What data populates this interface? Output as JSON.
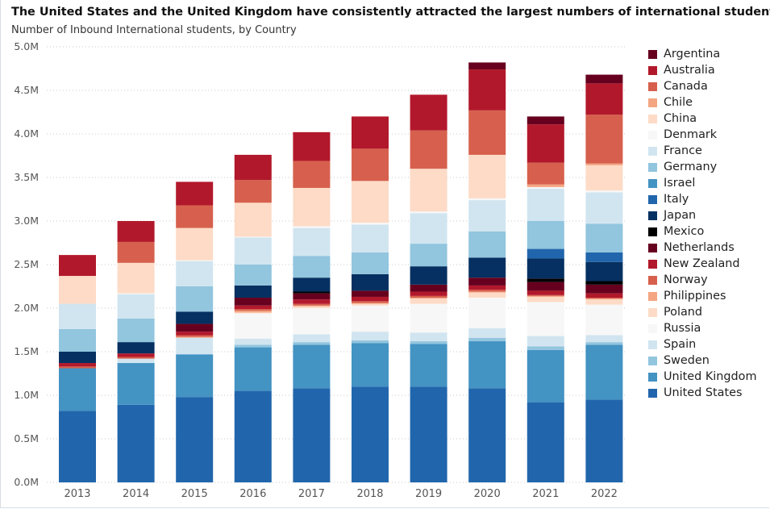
{
  "title": "The United States and the United Kingdom have consistently attracted the largest numbers of international students.",
  "subtitle": "Number of Inbound International students, by Country",
  "chart_data": {
    "type": "bar",
    "stacked": true,
    "categories": [
      "2013",
      "2014",
      "2015",
      "2016",
      "2017",
      "2018",
      "2019",
      "2020",
      "2021",
      "2022"
    ],
    "ylim": [
      0,
      5000000
    ],
    "yticks": [
      0,
      500000,
      1000000,
      1500000,
      2000000,
      2500000,
      3000000,
      3500000,
      4000000,
      4500000,
      5000000
    ],
    "ytick_labels": [
      "0.0M",
      "0.5M",
      "1.0M",
      "1.5M",
      "2.0M",
      "2.5M",
      "3.0M",
      "3.5M",
      "4.0M",
      "4.5M",
      "5.0M"
    ],
    "grid": true,
    "legend_position": "right",
    "series": [
      {
        "name": "United States",
        "color": "#2166ac",
        "values": [
          820000,
          890000,
          980000,
          1050000,
          1080000,
          1100000,
          1100000,
          1080000,
          920000,
          950000
        ]
      },
      {
        "name": "United Kingdom",
        "color": "#4393c3",
        "values": [
          490000,
          480000,
          490000,
          500000,
          500000,
          500000,
          490000,
          540000,
          600000,
          630000
        ]
      },
      {
        "name": "Sweden",
        "color": "#92c5de",
        "values": [
          0,
          0,
          0,
          30000,
          30000,
          30000,
          30000,
          40000,
          40000,
          30000
        ]
      },
      {
        "name": "Spain",
        "color": "#d1e5f0",
        "values": [
          0,
          50000,
          190000,
          70000,
          90000,
          100000,
          100000,
          110000,
          120000,
          80000
        ]
      },
      {
        "name": "Russia",
        "color": "#f7f7f7",
        "values": [
          0,
          0,
          0,
          290000,
          300000,
          300000,
          330000,
          350000,
          390000,
          350000
        ]
      },
      {
        "name": "Poland",
        "color": "#fddbc7",
        "values": [
          0,
          0,
          0,
          10000,
          20000,
          20000,
          60000,
          60000,
          60000,
          60000
        ]
      },
      {
        "name": "Philippines",
        "color": "#f4a582",
        "values": [
          0,
          0,
          10000,
          20000,
          10000,
          10000,
          10000,
          10000,
          10000,
          10000
        ]
      },
      {
        "name": "Norway",
        "color": "#d6604d",
        "values": [
          20000,
          20000,
          20000,
          20000,
          20000,
          20000,
          20000,
          20000,
          10000,
          10000
        ]
      },
      {
        "name": "New Zealand",
        "color": "#b2182b",
        "values": [
          40000,
          40000,
          40000,
          40000,
          50000,
          50000,
          50000,
          50000,
          50000,
          50000
        ]
      },
      {
        "name": "Netherlands",
        "color": "#67001f",
        "values": [
          0,
          0,
          90000,
          90000,
          70000,
          70000,
          80000,
          90000,
          100000,
          100000
        ]
      },
      {
        "name": "Mexico",
        "color": "#000000",
        "values": [
          0,
          0,
          0,
          0,
          20000,
          0,
          0,
          0,
          40000,
          40000
        ]
      },
      {
        "name": "Japan",
        "color": "#053061",
        "values": [
          130000,
          130000,
          140000,
          140000,
          160000,
          190000,
          210000,
          230000,
          230000,
          220000
        ]
      },
      {
        "name": "Italy",
        "color": "#2166ac",
        "values": [
          0,
          0,
          0,
          0,
          0,
          0,
          0,
          0,
          110000,
          110000
        ]
      },
      {
        "name": "Israel",
        "color": "#4393c3",
        "values": [
          0,
          0,
          0,
          0,
          0,
          0,
          0,
          0,
          0,
          0
        ]
      },
      {
        "name": "Germany",
        "color": "#92c5de",
        "values": [
          260000,
          270000,
          290000,
          240000,
          250000,
          250000,
          260000,
          300000,
          320000,
          330000
        ]
      },
      {
        "name": "France",
        "color": "#d1e5f0",
        "values": [
          290000,
          280000,
          290000,
          310000,
          320000,
          320000,
          350000,
          360000,
          370000,
          360000
        ]
      },
      {
        "name": "Denmark",
        "color": "#f7f7f7",
        "values": [
          0,
          10000,
          10000,
          10000,
          20000,
          20000,
          20000,
          20000,
          20000,
          20000
        ]
      },
      {
        "name": "China",
        "color": "#fddbc7",
        "values": [
          320000,
          350000,
          370000,
          390000,
          440000,
          480000,
          490000,
          500000,
          0,
          290000
        ]
      },
      {
        "name": "Chile",
        "color": "#f4a582",
        "values": [
          0,
          0,
          0,
          0,
          0,
          0,
          0,
          0,
          30000,
          20000
        ]
      },
      {
        "name": "Canada",
        "color": "#d6604d",
        "values": [
          0,
          240000,
          260000,
          260000,
          310000,
          370000,
          440000,
          510000,
          250000,
          560000
        ]
      },
      {
        "name": "Australia",
        "color": "#b2182b",
        "values": [
          240000,
          240000,
          270000,
          290000,
          330000,
          370000,
          410000,
          470000,
          440000,
          360000
        ]
      },
      {
        "name": "Argentina",
        "color": "#67001f",
        "values": [
          0,
          0,
          0,
          0,
          0,
          0,
          0,
          80000,
          90000,
          100000
        ]
      }
    ]
  }
}
